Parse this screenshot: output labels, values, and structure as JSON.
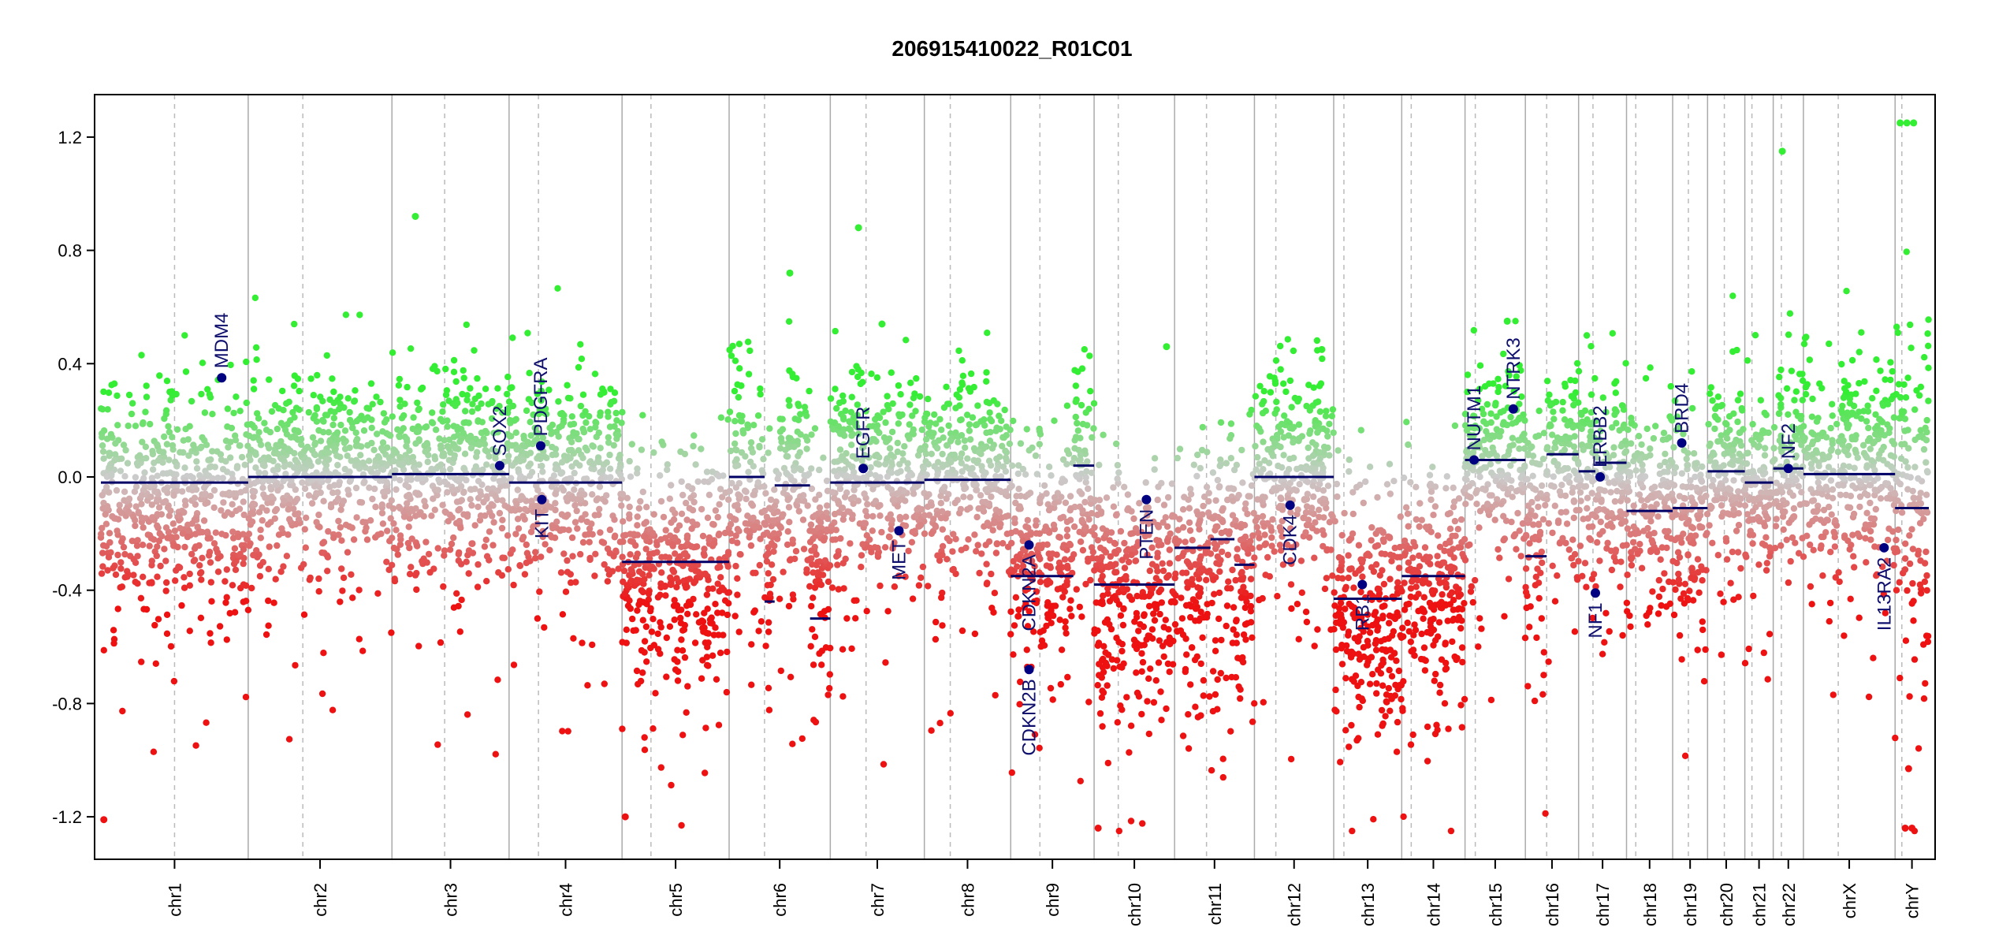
{
  "chart_data": {
    "type": "scatter",
    "title": "206915410022_R01C01",
    "xlabel": "",
    "ylabel": "",
    "ylim": [
      -1.35,
      1.35
    ],
    "yticks": [
      -1.2,
      -0.8,
      -0.4,
      0.0,
      0.4,
      0.8,
      1.2
    ],
    "grid": false,
    "colors": {
      "gain": "#33ee33",
      "neutral": "#cccccc",
      "loss": "#ee1111",
      "segment": "#000066",
      "gene_point": "#000080",
      "gene_label": "#0f0f6e"
    },
    "chromosomes": [
      {
        "name": "chr1",
        "length": 249,
        "centromere": 0.5,
        "segments": [
          {
            "start": 0,
            "end": 1,
            "value": -0.02
          }
        ],
        "noise": 0.2,
        "bias": -0.1
      },
      {
        "name": "chr2",
        "length": 243,
        "centromere": 0.38,
        "segments": [
          {
            "start": 0,
            "end": 1,
            "value": 0.0
          }
        ],
        "noise": 0.18,
        "bias": 0.03
      },
      {
        "name": "chr3",
        "length": 198,
        "centromere": 0.45,
        "segments": [
          {
            "start": 0,
            "end": 1,
            "value": 0.01
          }
        ],
        "noise": 0.18,
        "bias": 0.03
      },
      {
        "name": "chr4",
        "length": 191,
        "centromere": 0.26,
        "segments": [
          {
            "start": 0,
            "end": 1,
            "value": -0.02
          }
        ],
        "noise": 0.18,
        "bias": 0.0
      },
      {
        "name": "chr5",
        "length": 181,
        "centromere": 0.27,
        "segments": [
          {
            "start": 0,
            "end": 1,
            "value": -0.3
          }
        ],
        "noise": 0.2,
        "bias": -0.32
      },
      {
        "name": "chr6",
        "length": 171,
        "centromere": 0.35,
        "segments": [
          {
            "start": 0,
            "end": 0.35,
            "value": 0.0
          },
          {
            "start": 0.35,
            "end": 0.45,
            "value": -0.44
          },
          {
            "start": 0.45,
            "end": 0.8,
            "value": -0.03
          },
          {
            "start": 0.8,
            "end": 1,
            "value": -0.5
          }
        ],
        "noise": 0.2,
        "bias": -0.02
      },
      {
        "name": "chr7",
        "length": 159,
        "centromere": 0.38,
        "segments": [
          {
            "start": 0,
            "end": 1,
            "value": -0.02
          }
        ],
        "noise": 0.18,
        "bias": 0.03
      },
      {
        "name": "chr8",
        "length": 146,
        "centromere": 0.3,
        "segments": [
          {
            "start": 0,
            "end": 1,
            "value": -0.01
          }
        ],
        "noise": 0.18,
        "bias": 0.02
      },
      {
        "name": "chr9",
        "length": 141,
        "centromere": 0.35,
        "segments": [
          {
            "start": 0,
            "end": 0.75,
            "value": -0.35
          },
          {
            "start": 0.75,
            "end": 1,
            "value": 0.04
          }
        ],
        "noise": 0.22,
        "bias": -0.15
      },
      {
        "name": "chr10",
        "length": 136,
        "centromere": 0.3,
        "segments": [
          {
            "start": 0,
            "end": 1,
            "value": -0.38
          }
        ],
        "noise": 0.22,
        "bias": -0.45
      },
      {
        "name": "chr11",
        "length": 135,
        "centromere": 0.4,
        "segments": [
          {
            "start": 0,
            "end": 0.45,
            "value": -0.25
          },
          {
            "start": 0.45,
            "end": 0.75,
            "value": -0.22
          },
          {
            "start": 0.75,
            "end": 1,
            "value": -0.31
          }
        ],
        "noise": 0.22,
        "bias": -0.32
      },
      {
        "name": "chr12",
        "length": 134,
        "centromere": 0.27,
        "segments": [
          {
            "start": 0,
            "end": 1,
            "value": 0.0
          }
        ],
        "noise": 0.18,
        "bias": 0.03
      },
      {
        "name": "chr13",
        "length": 115,
        "centromere": 0.15,
        "segments": [
          {
            "start": 0,
            "end": 1,
            "value": -0.43
          }
        ],
        "noise": 0.22,
        "bias": -0.45
      },
      {
        "name": "chr14",
        "length": 107,
        "centromere": 0.15,
        "segments": [
          {
            "start": 0,
            "end": 1,
            "value": -0.35
          }
        ],
        "noise": 0.22,
        "bias": -0.38
      },
      {
        "name": "chr15",
        "length": 102,
        "centromere": 0.17,
        "segments": [
          {
            "start": 0,
            "end": 1,
            "value": 0.06
          }
        ],
        "noise": 0.16,
        "bias": 0.1
      },
      {
        "name": "chr16",
        "length": 90,
        "centromere": 0.4,
        "segments": [
          {
            "start": 0,
            "end": 0.4,
            "value": -0.28
          },
          {
            "start": 0.4,
            "end": 1,
            "value": 0.08
          }
        ],
        "noise": 0.2,
        "bias": 0.0
      },
      {
        "name": "chr17",
        "length": 81,
        "centromere": 0.3,
        "segments": [
          {
            "start": 0,
            "end": 0.35,
            "value": 0.02
          },
          {
            "start": 0.35,
            "end": 1,
            "value": 0.05
          }
        ],
        "noise": 0.18,
        "bias": 0.0
      },
      {
        "name": "chr18",
        "length": 78,
        "centromere": 0.2,
        "segments": [
          {
            "start": 0,
            "end": 1,
            "value": -0.12
          }
        ],
        "noise": 0.18,
        "bias": -0.1
      },
      {
        "name": "chr19",
        "length": 59,
        "centromere": 0.45,
        "segments": [
          {
            "start": 0,
            "end": 1,
            "value": -0.11
          }
        ],
        "noise": 0.2,
        "bias": -0.15
      },
      {
        "name": "chr20",
        "length": 63,
        "centromere": 0.45,
        "segments": [
          {
            "start": 0,
            "end": 1,
            "value": 0.02
          }
        ],
        "noise": 0.16,
        "bias": 0.05
      },
      {
        "name": "chr21",
        "length": 48,
        "centromere": 0.25,
        "segments": [
          {
            "start": 0,
            "end": 1,
            "value": -0.02
          }
        ],
        "noise": 0.16,
        "bias": 0.0
      },
      {
        "name": "chr22",
        "length": 51,
        "centromere": 0.27,
        "segments": [
          {
            "start": 0,
            "end": 1,
            "value": 0.03
          }
        ],
        "noise": 0.16,
        "bias": 0.05
      },
      {
        "name": "chrX",
        "length": 155,
        "centromere": 0.38,
        "segments": [
          {
            "start": 0,
            "end": 1,
            "value": 0.01
          }
        ],
        "noise": 0.18,
        "bias": 0.04
      },
      {
        "name": "chrY",
        "length": 57,
        "centromere": 0.2,
        "segments": [
          {
            "start": 0,
            "end": 1,
            "value": -0.11
          }
        ],
        "noise": 0.3,
        "bias": 0.0
      }
    ],
    "genes": [
      {
        "name": "MDM4",
        "chrom": "chr1",
        "pos": 0.82,
        "value": 0.35,
        "label_anchor": "above"
      },
      {
        "name": "SOX2",
        "chrom": "chr3",
        "pos": 0.92,
        "value": 0.04,
        "label_anchor": "above"
      },
      {
        "name": "PDGFRA",
        "chrom": "chr4",
        "pos": 0.28,
        "value": 0.11,
        "label_anchor": "above"
      },
      {
        "name": "KIT",
        "chrom": "chr4",
        "pos": 0.29,
        "value": -0.08,
        "label_anchor": "below"
      },
      {
        "name": "EGFR",
        "chrom": "chr7",
        "pos": 0.35,
        "value": 0.03,
        "label_anchor": "above"
      },
      {
        "name": "MET",
        "chrom": "chr7",
        "pos": 0.73,
        "value": -0.19,
        "label_anchor": "below"
      },
      {
        "name": "CDKN2A",
        "chrom": "chr9",
        "pos": 0.22,
        "value": -0.24,
        "label_anchor": "below"
      },
      {
        "name": "CDKN2B",
        "chrom": "chr9",
        "pos": 0.22,
        "value": -0.68,
        "label_anchor": "below"
      },
      {
        "name": "PTEN",
        "chrom": "chr10",
        "pos": 0.65,
        "value": -0.08,
        "label_anchor": "below"
      },
      {
        "name": "CDK4",
        "chrom": "chr12",
        "pos": 0.45,
        "value": -0.1,
        "label_anchor": "below"
      },
      {
        "name": "RB1",
        "chrom": "chr13",
        "pos": 0.42,
        "value": -0.38,
        "label_anchor": "below"
      },
      {
        "name": "NUTM1",
        "chrom": "chr15",
        "pos": 0.15,
        "value": 0.06,
        "label_anchor": "above"
      },
      {
        "name": "NTRK3",
        "chrom": "chr15",
        "pos": 0.8,
        "value": 0.24,
        "label_anchor": "above"
      },
      {
        "name": "ERBB2",
        "chrom": "chr17",
        "pos": 0.45,
        "value": 0.0,
        "label_anchor": "above"
      },
      {
        "name": "NF1",
        "chrom": "chr17",
        "pos": 0.35,
        "value": -0.41,
        "label_anchor": "below"
      },
      {
        "name": "BRD4",
        "chrom": "chr19",
        "pos": 0.26,
        "value": 0.12,
        "label_anchor": "above"
      },
      {
        "name": "NF2",
        "chrom": "chr22",
        "pos": 0.5,
        "value": 0.03,
        "label_anchor": "above"
      },
      {
        "name": "IL13RA2",
        "chrom": "chrX",
        "pos": 0.88,
        "value": -0.25,
        "label_anchor": "below"
      }
    ],
    "outliers": [
      {
        "chrom": "chr3",
        "pos": 0.2,
        "value": 0.92
      },
      {
        "chrom": "chr6",
        "pos": 0.6,
        "value": 0.72
      },
      {
        "chrom": "chr7",
        "pos": 0.3,
        "value": 0.88
      },
      {
        "chrom": "chr7",
        "pos": 0.55,
        "value": 0.54
      },
      {
        "chrom": "chr10",
        "pos": 0.9,
        "value": 0.46
      },
      {
        "chrom": "chr12",
        "pos": 0.85,
        "value": 0.45
      },
      {
        "chrom": "chr15",
        "pos": 0.7,
        "value": 0.55
      },
      {
        "chrom": "chr22",
        "pos": 0.3,
        "value": 1.15
      },
      {
        "chrom": "chrY",
        "pos": 0.15,
        "value": 1.25
      },
      {
        "chrom": "chrY",
        "pos": 0.35,
        "value": 1.25
      },
      {
        "chrom": "chrY",
        "pos": 0.55,
        "value": 1.25
      },
      {
        "chrom": "chrY",
        "pos": 0.3,
        "value": -1.24
      },
      {
        "chrom": "chrY",
        "pos": 0.5,
        "value": -1.24
      },
      {
        "chrom": "chrY",
        "pos": 0.4,
        "value": -1.03
      },
      {
        "chrom": "chr1",
        "pos": 0.02,
        "value": -1.21
      },
      {
        "chrom": "chr5",
        "pos": 0.03,
        "value": -1.2
      },
      {
        "chrom": "chr10",
        "pos": 0.05,
        "value": -1.24
      }
    ]
  }
}
